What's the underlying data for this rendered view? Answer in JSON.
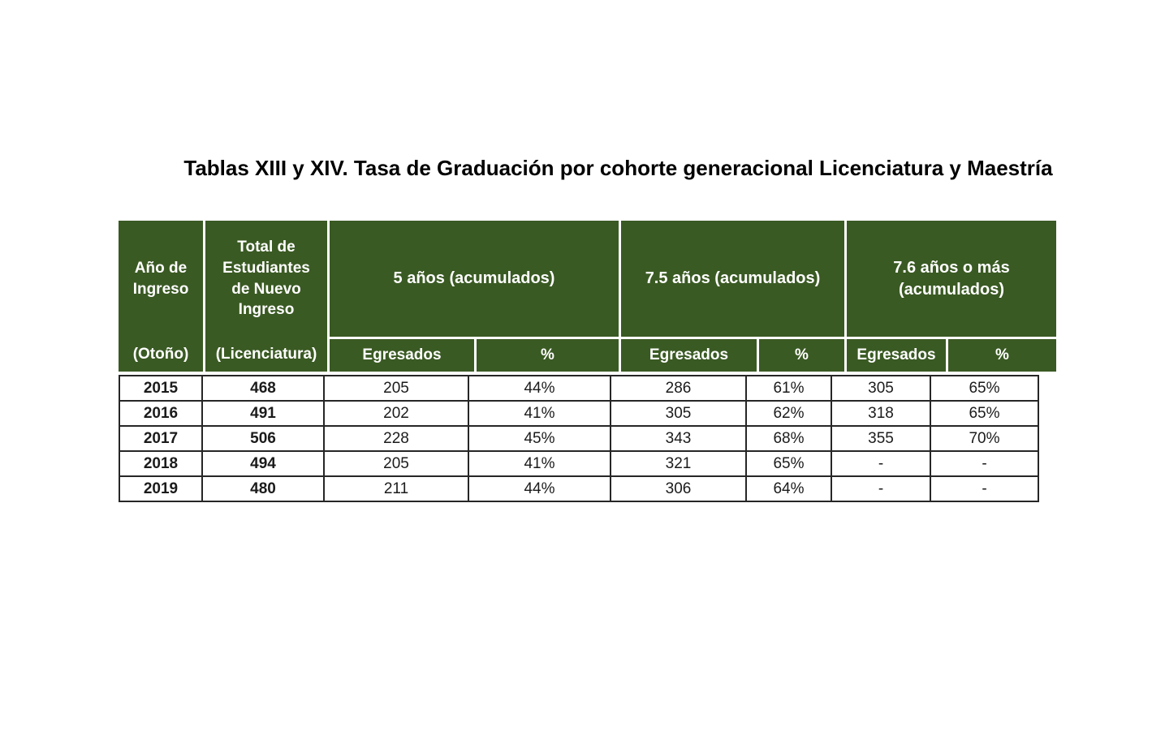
{
  "title": "Tablas XIII y XIV. Tasa de Graduación por cohorte generacional Licenciatura y Maestría",
  "colors": {
    "header_green": "#3A5A23",
    "header_text": "#FFFFFF",
    "body_text": "#1B1B1B",
    "body_border": "#262626"
  },
  "table": {
    "header": {
      "year_top": "Año de\nIngreso",
      "year_bottom": "(Otoño)",
      "total_top": "Total de\nEstudiantes\nde Nuevo\nIngreso",
      "total_bottom": "(Licenciatura)",
      "groups": [
        {
          "label": "5 años (acumulados)",
          "sub": [
            "Egresados",
            "%"
          ]
        },
        {
          "label": "7.5 años (acumulados)",
          "sub": [
            "Egresados",
            "%"
          ]
        },
        {
          "label": "7.6 años o más\n(acumulados)",
          "sub": [
            "Egresados",
            "%"
          ]
        }
      ]
    },
    "rows": [
      [
        "2015",
        "468",
        "205",
        "44%",
        "286",
        "61%",
        "305",
        "65%"
      ],
      [
        "2016",
        "491",
        "202",
        "41%",
        "305",
        "62%",
        "318",
        "65%"
      ],
      [
        "2017",
        "506",
        "228",
        "45%",
        "343",
        "68%",
        "355",
        "70%"
      ],
      [
        "2018",
        "494",
        "205",
        "41%",
        "321",
        "65%",
        "-",
        "-"
      ],
      [
        "2019",
        "480",
        "211",
        "44%",
        "306",
        "64%",
        "-",
        "-"
      ]
    ]
  }
}
